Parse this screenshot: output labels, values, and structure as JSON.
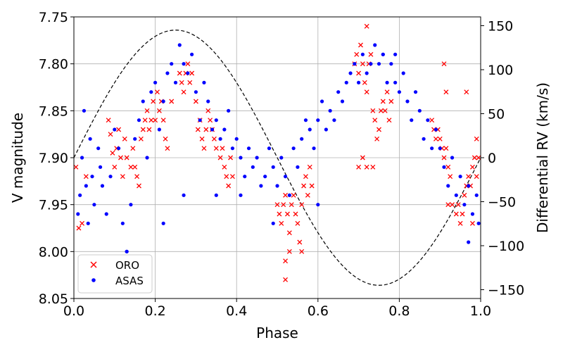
{
  "chart_data": {
    "type": "scatter",
    "title": "",
    "xlabel": "Phase",
    "ylabel": "V magnitude",
    "y2label": "Differential RV (km/s)",
    "xlim": [
      0.0,
      1.0
    ],
    "ylim": [
      8.05,
      7.75
    ],
    "y2lim": [
      -160,
      160
    ],
    "x_ticks": [
      0.0,
      0.2,
      0.4,
      0.6,
      0.8,
      1.0
    ],
    "x_tick_labels": [
      "0.0",
      "0.2",
      "0.4",
      "0.6",
      "0.8",
      "1.0"
    ],
    "y_ticks": [
      7.75,
      7.8,
      7.85,
      7.9,
      7.95,
      8.0,
      8.05
    ],
    "y_tick_labels": [
      "7.75",
      "7.80",
      "7.85",
      "7.90",
      "7.95",
      "8.00",
      "8.05"
    ],
    "y2_ticks": [
      150,
      100,
      50,
      0,
      -50,
      -100,
      -150
    ],
    "y2_tick_labels": [
      "150",
      "100",
      "50",
      "0",
      "−50",
      "−100",
      "−150"
    ],
    "grid": true,
    "legend_position": "bottom-left",
    "rv_curve": {
      "name": "RV model",
      "amplitude_kms": 145,
      "function": "sine",
      "style": "dashed",
      "color": "#000000"
    },
    "series": [
      {
        "name": "ORO",
        "marker": "x",
        "color": "#ff0000",
        "points": [
          [
            0.005,
            7.91
          ],
          [
            0.012,
            7.975
          ],
          [
            0.02,
            7.97
          ],
          [
            0.03,
            7.92
          ],
          [
            0.085,
            7.86
          ],
          [
            0.09,
            7.875
          ],
          [
            0.095,
            7.895
          ],
          [
            0.1,
            7.91
          ],
          [
            0.105,
            7.89
          ],
          [
            0.11,
            7.87
          ],
          [
            0.115,
            7.9
          ],
          [
            0.12,
            7.92
          ],
          [
            0.125,
            7.88
          ],
          [
            0.13,
            7.9
          ],
          [
            0.14,
            7.91
          ],
          [
            0.145,
            7.89
          ],
          [
            0.15,
            7.91
          ],
          [
            0.155,
            7.92
          ],
          [
            0.16,
            7.93
          ],
          [
            0.165,
            7.88
          ],
          [
            0.17,
            7.87
          ],
          [
            0.175,
            7.86
          ],
          [
            0.18,
            7.85
          ],
          [
            0.185,
            7.87
          ],
          [
            0.19,
            7.86
          ],
          [
            0.195,
            7.84
          ],
          [
            0.2,
            7.86
          ],
          [
            0.205,
            7.83
          ],
          [
            0.21,
            7.85
          ],
          [
            0.215,
            7.84
          ],
          [
            0.22,
            7.86
          ],
          [
            0.225,
            7.88
          ],
          [
            0.23,
            7.89
          ],
          [
            0.24,
            7.84
          ],
          [
            0.26,
            7.81
          ],
          [
            0.265,
            7.82
          ],
          [
            0.27,
            7.83
          ],
          [
            0.275,
            7.81
          ],
          [
            0.28,
            7.8
          ],
          [
            0.285,
            7.82
          ],
          [
            0.29,
            7.81
          ],
          [
            0.3,
            7.84
          ],
          [
            0.305,
            7.87
          ],
          [
            0.31,
            7.86
          ],
          [
            0.315,
            7.88
          ],
          [
            0.32,
            7.89
          ],
          [
            0.325,
            7.87
          ],
          [
            0.33,
            7.85
          ],
          [
            0.335,
            7.86
          ],
          [
            0.34,
            7.87
          ],
          [
            0.345,
            7.88
          ],
          [
            0.35,
            7.89
          ],
          [
            0.36,
            7.9
          ],
          [
            0.365,
            7.89
          ],
          [
            0.37,
            7.91
          ],
          [
            0.375,
            7.92
          ],
          [
            0.38,
            7.93
          ],
          [
            0.385,
            7.9
          ],
          [
            0.39,
            7.92
          ],
          [
            0.5,
            7.95
          ],
          [
            0.505,
            7.96
          ],
          [
            0.51,
            7.97
          ],
          [
            0.515,
            7.95
          ],
          [
            0.52,
            7.94
          ],
          [
            0.525,
            7.96
          ],
          [
            0.53,
            7.98
          ],
          [
            0.535,
            7.95
          ],
          [
            0.54,
            7.94
          ],
          [
            0.545,
            7.96
          ],
          [
            0.55,
            7.97
          ],
          [
            0.555,
            7.99
          ],
          [
            0.56,
            7.95
          ],
          [
            0.565,
            7.93
          ],
          [
            0.57,
            7.92
          ],
          [
            0.575,
            7.94
          ],
          [
            0.58,
            7.91
          ],
          [
            0.585,
            7.93
          ],
          [
            0.52,
            8.01
          ],
          [
            0.52,
            8.03
          ],
          [
            0.53,
            8.0
          ],
          [
            0.56,
            8.0
          ],
          [
            0.69,
            7.8
          ],
          [
            0.695,
            7.79
          ],
          [
            0.7,
            7.81
          ],
          [
            0.705,
            7.78
          ],
          [
            0.71,
            7.8
          ],
          [
            0.715,
            7.82
          ],
          [
            0.72,
            7.83
          ],
          [
            0.725,
            7.8
          ],
          [
            0.73,
            7.79
          ],
          [
            0.735,
            7.85
          ],
          [
            0.74,
            7.86
          ],
          [
            0.745,
            7.88
          ],
          [
            0.75,
            7.87
          ],
          [
            0.755,
            7.85
          ],
          [
            0.76,
            7.84
          ],
          [
            0.765,
            7.85
          ],
          [
            0.77,
            7.83
          ],
          [
            0.775,
            7.86
          ],
          [
            0.78,
            7.84
          ],
          [
            0.72,
            7.76
          ],
          [
            0.71,
            7.9
          ],
          [
            0.72,
            7.91
          ],
          [
            0.7,
            7.91
          ],
          [
            0.735,
            7.91
          ],
          [
            0.88,
            7.86
          ],
          [
            0.885,
            7.87
          ],
          [
            0.89,
            7.88
          ],
          [
            0.895,
            7.87
          ],
          [
            0.9,
            7.88
          ],
          [
            0.905,
            7.89
          ],
          [
            0.91,
            7.9
          ],
          [
            0.915,
            7.89
          ],
          [
            0.92,
            7.91
          ],
          [
            0.925,
            7.92
          ],
          [
            0.91,
            7.8
          ],
          [
            0.915,
            7.83
          ],
          [
            0.92,
            7.95
          ],
          [
            0.93,
            7.95
          ],
          [
            0.94,
            7.96
          ],
          [
            0.945,
            7.95
          ],
          [
            0.95,
            7.97
          ],
          [
            0.955,
            7.96
          ],
          [
            0.96,
            7.94
          ],
          [
            0.965,
            7.93
          ],
          [
            0.97,
            7.92
          ],
          [
            0.975,
            7.93
          ],
          [
            0.98,
            7.91
          ],
          [
            0.985,
            7.9
          ],
          [
            0.99,
            7.92
          ],
          [
            0.995,
            7.9
          ],
          [
            0.99,
            7.88
          ],
          [
            0.965,
            7.83
          ],
          [
            0.98,
            7.97
          ]
        ]
      },
      {
        "name": "ASAS",
        "marker": "dot",
        "color": "#0000ff",
        "points": [
          [
            0.01,
            7.96
          ],
          [
            0.015,
            7.94
          ],
          [
            0.02,
            7.9
          ],
          [
            0.025,
            7.85
          ],
          [
            0.03,
            7.93
          ],
          [
            0.035,
            7.97
          ],
          [
            0.04,
            7.88
          ],
          [
            0.045,
            7.92
          ],
          [
            0.05,
            7.95
          ],
          [
            0.06,
            7.89
          ],
          [
            0.065,
            7.91
          ],
          [
            0.07,
            7.93
          ],
          [
            0.08,
            7.96
          ],
          [
            0.09,
            7.92
          ],
          [
            0.1,
            7.87
          ],
          [
            0.11,
            7.89
          ],
          [
            0.12,
            7.97
          ],
          [
            0.13,
            8.0
          ],
          [
            0.14,
            7.95
          ],
          [
            0.15,
            7.88
          ],
          [
            0.16,
            7.86
          ],
          [
            0.17,
            7.84
          ],
          [
            0.18,
            7.9
          ],
          [
            0.19,
            7.83
          ],
          [
            0.2,
            7.82
          ],
          [
            0.21,
            7.87
          ],
          [
            0.22,
            7.84
          ],
          [
            0.23,
            7.81
          ],
          [
            0.24,
            7.8
          ],
          [
            0.25,
            7.82
          ],
          [
            0.26,
            7.78
          ],
          [
            0.27,
            7.8
          ],
          [
            0.28,
            7.81
          ],
          [
            0.29,
            7.79
          ],
          [
            0.3,
            7.83
          ],
          [
            0.31,
            7.86
          ],
          [
            0.32,
            7.82
          ],
          [
            0.33,
            7.84
          ],
          [
            0.34,
            7.87
          ],
          [
            0.35,
            7.86
          ],
          [
            0.36,
            7.88
          ],
          [
            0.37,
            7.87
          ],
          [
            0.38,
            7.85
          ],
          [
            0.39,
            7.89
          ],
          [
            0.4,
            7.88
          ],
          [
            0.41,
            7.9
          ],
          [
            0.42,
            7.92
          ],
          [
            0.43,
            7.89
          ],
          [
            0.44,
            7.91
          ],
          [
            0.45,
            7.9
          ],
          [
            0.46,
            7.93
          ],
          [
            0.47,
            7.92
          ],
          [
            0.48,
            7.89
          ],
          [
            0.49,
            7.91
          ],
          [
            0.5,
            7.93
          ],
          [
            0.51,
            7.9
          ],
          [
            0.52,
            7.92
          ],
          [
            0.53,
            7.94
          ],
          [
            0.54,
            7.89
          ],
          [
            0.55,
            7.91
          ],
          [
            0.56,
            7.88
          ],
          [
            0.57,
            7.86
          ],
          [
            0.58,
            7.87
          ],
          [
            0.59,
            7.89
          ],
          [
            0.6,
            7.86
          ],
          [
            0.61,
            7.84
          ],
          [
            0.62,
            7.87
          ],
          [
            0.63,
            7.85
          ],
          [
            0.64,
            7.86
          ],
          [
            0.65,
            7.83
          ],
          [
            0.66,
            7.84
          ],
          [
            0.67,
            7.82
          ],
          [
            0.68,
            7.81
          ],
          [
            0.69,
            7.8
          ],
          [
            0.7,
            7.82
          ],
          [
            0.71,
            7.79
          ],
          [
            0.72,
            7.81
          ],
          [
            0.73,
            7.8
          ],
          [
            0.74,
            7.78
          ],
          [
            0.75,
            7.8
          ],
          [
            0.76,
            7.79
          ],
          [
            0.77,
            7.82
          ],
          [
            0.78,
            7.8
          ],
          [
            0.79,
            7.82
          ],
          [
            0.8,
            7.83
          ],
          [
            0.81,
            7.81
          ],
          [
            0.82,
            7.84
          ],
          [
            0.83,
            7.86
          ],
          [
            0.84,
            7.83
          ],
          [
            0.85,
            7.85
          ],
          [
            0.86,
            7.88
          ],
          [
            0.87,
            7.86
          ],
          [
            0.88,
            7.89
          ],
          [
            0.89,
            7.87
          ],
          [
            0.9,
            7.89
          ],
          [
            0.91,
            7.91
          ],
          [
            0.92,
            7.93
          ],
          [
            0.93,
            7.9
          ],
          [
            0.94,
            7.94
          ],
          [
            0.95,
            7.92
          ],
          [
            0.96,
            7.95
          ],
          [
            0.97,
            7.93
          ],
          [
            0.98,
            7.96
          ],
          [
            0.99,
            7.94
          ],
          [
            0.995,
            7.97
          ],
          [
            0.97,
            7.99
          ],
          [
            0.13,
            8.0
          ],
          [
            0.22,
            7.97
          ],
          [
            0.49,
            7.97
          ],
          [
            0.6,
            7.95
          ],
          [
            0.76,
            7.79
          ],
          [
            0.79,
            7.79
          ],
          [
            0.41,
            7.94
          ],
          [
            0.35,
            7.94
          ],
          [
            0.27,
            7.94
          ]
        ]
      }
    ]
  }
}
